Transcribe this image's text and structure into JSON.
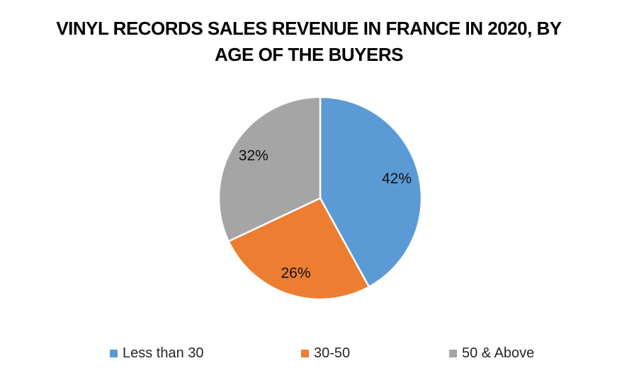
{
  "header": {
    "title_lines": [
      "VINYL RECORDS SALES REVENUE IN FRANCE IN 2020, BY",
      "AGE OF THE BUYERS"
    ]
  },
  "chart_data": {
    "type": "pie",
    "title": "VINYL RECORDS SALES REVENUE IN FRANCE IN 2020, BY AGE OF THE BUYERS",
    "categories": [
      "Less than 30",
      "30-50",
      "50 & Above"
    ],
    "values": [
      42,
      26,
      32
    ],
    "labels": [
      "42%",
      "26%",
      "32%"
    ],
    "colors": [
      "#5B9BD5",
      "#ED7D31",
      "#A5A5A5"
    ],
    "start_angle": 0,
    "direction": "clockwise",
    "legend_position": "bottom",
    "separator_color": "#ffffff"
  },
  "legend": {
    "items": [
      {
        "label": "Less than 30",
        "color": "#5B9BD5"
      },
      {
        "label": "30-50",
        "color": "#ED7D31"
      },
      {
        "label": "50 & Above",
        "color": "#A5A5A5"
      }
    ]
  }
}
